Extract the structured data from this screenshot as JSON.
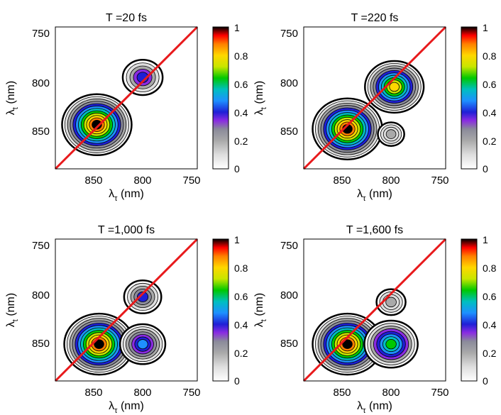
{
  "figure": {
    "colorbar_ticks": [
      "0",
      "0.2",
      "0.4",
      "0.6",
      "0.8",
      "1"
    ],
    "diagonal_color": "#e8191b"
  },
  "chart_data": [
    {
      "type": "heatmap",
      "title": "T =20 fs",
      "xlabel": "λ_τ (nm)",
      "ylabel": "λ_t (nm)",
      "xlim": [
        880,
        750
      ],
      "ylim": [
        880,
        745
      ],
      "xticks": [
        "850",
        "800",
        "750"
      ],
      "yticks": [
        "750",
        "800",
        "850"
      ],
      "colorbar_range": [
        0,
        1
      ],
      "peaks": [
        {
          "x": 842,
          "y": 838,
          "value": 1.0
        },
        {
          "x": 800,
          "y": 793,
          "value": 0.45
        }
      ]
    },
    {
      "type": "heatmap",
      "title": "T =220 fs",
      "xlabel": "λ_τ (nm)",
      "ylabel": "λ_t (nm)",
      "xlim": [
        880,
        750
      ],
      "ylim": [
        880,
        745
      ],
      "xticks": [
        "850",
        "800",
        "750"
      ],
      "yticks": [
        "750",
        "800",
        "850"
      ],
      "colorbar_range": [
        0,
        1
      ],
      "peaks": [
        {
          "x": 840,
          "y": 842,
          "value": 1.0
        },
        {
          "x": 797,
          "y": 802,
          "value": 0.8
        },
        {
          "x": 800,
          "y": 847,
          "value": 0.2
        }
      ]
    },
    {
      "type": "heatmap",
      "title": "T =1,000 fs",
      "xlabel": "λ_τ (nm)",
      "ylabel": "λ_t (nm)",
      "xlim": [
        880,
        750
      ],
      "ylim": [
        880,
        745
      ],
      "xticks": [
        "850",
        "800",
        "750"
      ],
      "yticks": [
        "750",
        "800",
        "850"
      ],
      "colorbar_range": [
        0,
        1
      ],
      "peaks": [
        {
          "x": 840,
          "y": 845,
          "value": 1.0
        },
        {
          "x": 800,
          "y": 845,
          "value": 0.55
        },
        {
          "x": 800,
          "y": 800,
          "value": 0.4
        }
      ]
    },
    {
      "type": "heatmap",
      "title": "T =1,600 fs",
      "xlabel": "λ_τ (nm)",
      "ylabel": "λ_t (nm)",
      "xlim": [
        880,
        750
      ],
      "ylim": [
        880,
        745
      ],
      "xticks": [
        "850",
        "800",
        "750"
      ],
      "yticks": [
        "750",
        "800",
        "850"
      ],
      "colorbar_range": [
        0,
        1
      ],
      "peaks": [
        {
          "x": 840,
          "y": 845,
          "value": 1.0
        },
        {
          "x": 800,
          "y": 845,
          "value": 0.7
        },
        {
          "x": 800,
          "y": 805,
          "value": 0.25
        }
      ]
    }
  ]
}
